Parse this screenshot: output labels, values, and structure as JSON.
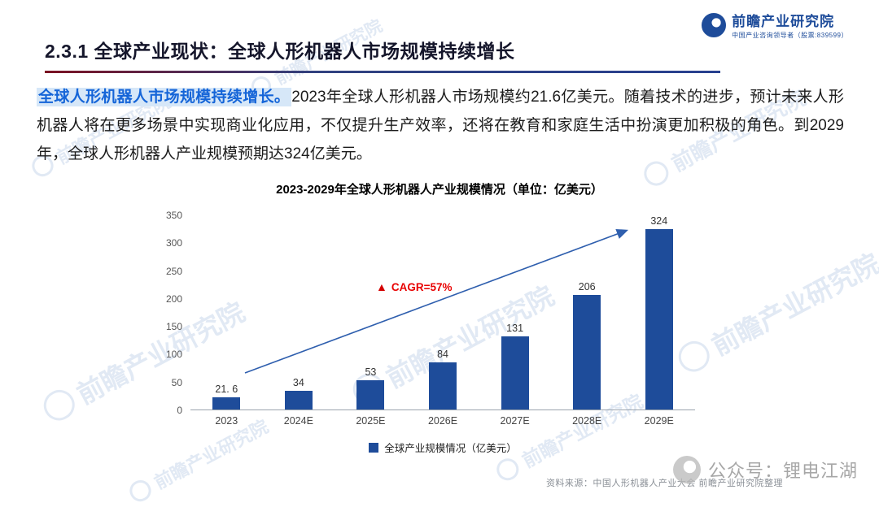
{
  "page": {
    "title": "2.3.1 全球产业现状：全球人形机器人市场规模持续增长",
    "logo": {
      "name": "前瞻产业研究院",
      "tagline": "中国产业咨询领导者（股票:839599）"
    },
    "intro": {
      "lead": "全球人形机器人市场规模持续增长。",
      "body": "2023年全球人形机器人市场规模约21.6亿美元。随着技术的进步，预计未来人形机器人将在更多场景中实现商业化应用，不仅提升生产效率，还将在教育和家庭生活中扮演更加积极的角色。到2029年，全球人形机器人产业规模预期达324亿美元。"
    },
    "source": "资料来源：中国人形机器人产业大会  前瞻产业研究院整理",
    "watermark_text": "前瞻产业研究院",
    "bottom_watermark": "公众号：锂电江湖"
  },
  "chart_data": {
    "type": "bar",
    "title": "2023-2029年全球人形机器人产业规模情况（单位：亿美元）",
    "categories": [
      "2023",
      "2024E",
      "2025E",
      "2026E",
      "2027E",
      "2028E",
      "2029E"
    ],
    "values": [
      21.6,
      34,
      53,
      84,
      131,
      206,
      324
    ],
    "value_labels": [
      "21. 6",
      "34",
      "53",
      "84",
      "131",
      "206",
      "324"
    ],
    "ylim": [
      0,
      350
    ],
    "yticks": [
      0,
      50,
      100,
      150,
      200,
      250,
      300,
      350
    ],
    "legend": "全球产业规模情况（亿美元）",
    "annotation": "CAGR=57%",
    "bar_color": "#1e4c9a",
    "arrow_color": "#2f5fae",
    "annotation_color": "#e80000"
  }
}
